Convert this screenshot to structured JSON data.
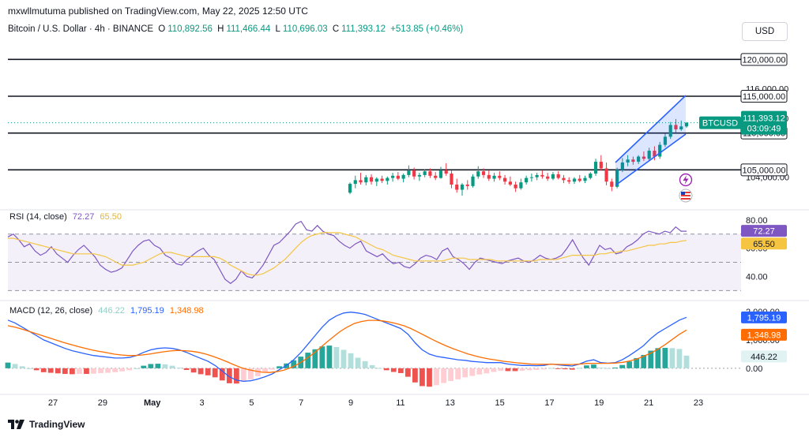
{
  "header": {
    "publisher": "mxwllmutuma published on TradingView.com, May 22, 2025 12:50 UTC",
    "symbol": "Bitcoin / U.S. Dollar · 4h · BINANCE",
    "open_label": "O",
    "open": "110,892.56",
    "high_label": "H",
    "high": "111,466.44",
    "low_label": "L",
    "low": "110,696.03",
    "close_label": "C",
    "close": "111,393.12",
    "change": "+513.85 (+0.46%)",
    "currency_button": "USD"
  },
  "footer": {
    "brand": "TradingView"
  },
  "colors": {
    "up": "#089981",
    "down": "#f23645",
    "rsi_line": "#7e57c2",
    "rsi_ma": "#f5c542",
    "macd_line": "#2962ff",
    "signal_line": "#ff6d00",
    "hist_up": "#26a69a",
    "hist_down": "#ef5350",
    "channel": "#2962ff"
  },
  "chart_data": [
    {
      "type": "candlestick",
      "pane": "price",
      "x_ticks": [
        "27",
        "29",
        "May",
        "3",
        "5",
        "7",
        "9",
        "11",
        "13",
        "15",
        "17",
        "19",
        "21",
        "23"
      ],
      "y_ticks": [
        "116,000.00",
        "112,000.00",
        "104,000.00"
      ],
      "y_range": [
        100000,
        122500
      ],
      "horizontal_levels": [
        {
          "value": 120000,
          "label": "120,000.00"
        },
        {
          "value": 115000,
          "label": "115,000.00"
        },
        {
          "value": 110000,
          "label": "110,000.00"
        },
        {
          "value": 105000,
          "label": "105,000.00"
        }
      ],
      "last_price": {
        "symbol": "BTCUSD",
        "price": "111,393.12",
        "countdown": "03:09:49",
        "value": 111393
      },
      "candles": [
        [
          101900,
          103300,
          101700,
          103100
        ],
        [
          103100,
          104200,
          102500,
          103600
        ],
        [
          103600,
          104600,
          103000,
          103300
        ],
        [
          103300,
          104300,
          102900,
          104000
        ],
        [
          104000,
          104400,
          103000,
          103400
        ],
        [
          103400,
          104000,
          102800,
          103800
        ],
        [
          103800,
          104200,
          103200,
          103500
        ],
        [
          103500,
          104100,
          103000,
          103900
        ],
        [
          103900,
          104600,
          103400,
          104200
        ],
        [
          104200,
          104700,
          103600,
          103800
        ],
        [
          103800,
          104500,
          103300,
          104300
        ],
        [
          104300,
          105600,
          104000,
          104900
        ],
        [
          104900,
          105300,
          103700,
          104100
        ],
        [
          104100,
          104600,
          103500,
          104300
        ],
        [
          104300,
          105100,
          104000,
          104800
        ],
        [
          104800,
          105200,
          103900,
          104200
        ],
        [
          104200,
          104700,
          103600,
          103900
        ],
        [
          103900,
          105400,
          103800,
          104900
        ],
        [
          104900,
          105900,
          104200,
          104500
        ],
        [
          104500,
          104900,
          102500,
          103000
        ],
        [
          103000,
          103800,
          101900,
          102300
        ],
        [
          102300,
          103200,
          101500,
          103000
        ],
        [
          103000,
          103600,
          102300,
          102800
        ],
        [
          102800,
          104400,
          102600,
          104100
        ],
        [
          104100,
          105500,
          103800,
          104800
        ],
        [
          104800,
          105200,
          103900,
          104300
        ],
        [
          104300,
          104900,
          103500,
          103800
        ],
        [
          103800,
          104600,
          103400,
          104200
        ],
        [
          104200,
          104800,
          103600,
          103900
        ],
        [
          103900,
          104300,
          103000,
          103400
        ],
        [
          103400,
          104100,
          102800,
          103000
        ],
        [
          103000,
          103400,
          102000,
          102500
        ],
        [
          102500,
          103800,
          102300,
          103300
        ],
        [
          103300,
          104200,
          103000,
          103900
        ],
        [
          103900,
          104500,
          103400,
          104000
        ],
        [
          104000,
          104600,
          103600,
          104300
        ],
        [
          104300,
          104900,
          103800,
          104100
        ],
        [
          104100,
          104600,
          103500,
          103800
        ],
        [
          103800,
          104700,
          103600,
          104400
        ],
        [
          104400,
          104800,
          103700,
          103900
        ],
        [
          103900,
          104300,
          103200,
          103600
        ],
        [
          103600,
          104000,
          103100,
          103400
        ],
        [
          103400,
          104000,
          103100,
          103800
        ],
        [
          103800,
          104300,
          103300,
          103500
        ],
        [
          103500,
          104200,
          103200,
          103900
        ],
        [
          103900,
          104700,
          103700,
          104500
        ],
        [
          104500,
          106500,
          104200,
          106100
        ],
        [
          106100,
          107000,
          104900,
          105200
        ],
        [
          105200,
          106000,
          102900,
          103400
        ],
        [
          103400,
          103800,
          102100,
          102700
        ],
        [
          102700,
          105300,
          102500,
          105000
        ],
        [
          105000,
          106600,
          104700,
          106000
        ],
        [
          106000,
          107000,
          105500,
          106400
        ],
        [
          106400,
          106800,
          105700,
          106100
        ],
        [
          106100,
          107000,
          105800,
          106800
        ],
        [
          106800,
          107500,
          106200,
          106500
        ],
        [
          106500,
          108000,
          106300,
          107600
        ],
        [
          107600,
          108200,
          106300,
          106800
        ],
        [
          106800,
          108800,
          106500,
          108400
        ],
        [
          108400,
          109900,
          108100,
          109500
        ],
        [
          109500,
          111500,
          109200,
          111100
        ],
        [
          111100,
          111900,
          110100,
          110500
        ],
        [
          110500,
          111700,
          110300,
          110900
        ],
        [
          110900,
          111500,
          110700,
          111393
        ]
      ]
    },
    {
      "type": "line",
      "pane": "rsi",
      "title": "RSI (14, close)",
      "legend_values": [
        "72.27",
        "65.50"
      ],
      "y_ticks": [
        "80.00",
        "60.00",
        "40.00"
      ],
      "bands": [
        70,
        50,
        30
      ],
      "y_range": [
        28,
        86
      ],
      "last_labels": [
        {
          "value": 72.27,
          "label": "72.27"
        },
        {
          "value": 65.5,
          "label": "65.50"
        }
      ],
      "series": [
        {
          "values": [
            68,
            70,
            66,
            61,
            63,
            58,
            55,
            57,
            61,
            56,
            53,
            50,
            55,
            59,
            62,
            58,
            54,
            48,
            45,
            43,
            44,
            46,
            52,
            58,
            62,
            65,
            66,
            62,
            60,
            55,
            53,
            49,
            48,
            52,
            55,
            58,
            60,
            55,
            52,
            45,
            38,
            35,
            38,
            44,
            40,
            39,
            43,
            48,
            55,
            62,
            64,
            68,
            72,
            77,
            79,
            73,
            72,
            76,
            72,
            70,
            69,
            65,
            62,
            60,
            63,
            65,
            58,
            56,
            54,
            56,
            52,
            49,
            50,
            47,
            46,
            49,
            53,
            55,
            54,
            52,
            58,
            60,
            54,
            52,
            49,
            45,
            50,
            53,
            52,
            51,
            50,
            49,
            51,
            52,
            53,
            51,
            50,
            52,
            55,
            53,
            52,
            53,
            55,
            60,
            66,
            59,
            53,
            48,
            55,
            62,
            59,
            60,
            56,
            57,
            61,
            63,
            66,
            70,
            72,
            71,
            70,
            72,
            71,
            75,
            72,
            72
          ]
        },
        {
          "values": [
            67,
            67,
            66,
            65,
            64,
            63,
            62,
            61,
            60,
            59,
            58,
            57,
            56,
            56,
            56,
            56,
            56,
            55,
            54,
            52,
            50,
            48,
            48,
            48,
            49,
            50,
            52,
            54,
            56,
            57,
            57,
            56,
            55,
            54,
            54,
            54,
            54,
            54,
            54,
            53,
            51,
            48,
            46,
            44,
            42,
            41,
            41,
            42,
            44,
            46,
            49,
            52,
            56,
            60,
            64,
            67,
            69,
            70,
            71,
            71,
            71,
            71,
            70,
            69,
            68,
            66,
            64,
            62,
            60,
            59,
            57,
            55,
            54,
            53,
            52,
            51,
            51,
            51,
            51,
            51,
            51,
            52,
            53,
            53,
            53,
            52,
            52,
            52,
            52,
            52,
            51,
            51,
            51,
            51,
            51,
            51,
            51,
            51,
            52,
            52,
            52,
            52,
            53,
            54,
            55,
            55,
            55,
            55,
            55,
            56,
            56,
            57,
            57,
            58,
            58,
            59,
            60,
            61,
            62,
            62,
            63,
            63,
            64,
            64,
            65,
            65.5
          ]
        }
      ]
    },
    {
      "type": "line",
      "pane": "macd",
      "title": "MACD (12, 26, close)",
      "legend_values": [
        "446.22",
        "1,795.19",
        "1,348.98"
      ],
      "y_ticks": [
        "2,000.00",
        "1,000.00",
        "0.00"
      ],
      "y_range": [
        -700,
        2250
      ],
      "last_labels": [
        {
          "value": 1795.19,
          "label": "1,795.19"
        },
        {
          "value": 1348.98,
          "label": "1,348.98"
        },
        {
          "value": 446.22,
          "label": "446.22"
        }
      ],
      "series": [
        {
          "values": [
            1700,
            1600,
            1450,
            1300,
            1150,
            1000,
            900,
            800,
            700,
            620,
            560,
            500,
            450,
            420,
            390,
            360,
            360,
            380,
            450,
            560,
            650,
            700,
            720,
            700,
            650,
            560,
            450,
            350,
            250,
            100,
            -100,
            -300,
            -420,
            -460,
            -440,
            -380,
            -300,
            -200,
            -50,
            100,
            300,
            550,
            850,
            1150,
            1450,
            1700,
            1850,
            1950,
            1980,
            1950,
            1900,
            1800,
            1700,
            1600,
            1500,
            1400,
            1200,
            900,
            650,
            500,
            420,
            380,
            340,
            300,
            280,
            240,
            220,
            200,
            200,
            200,
            150,
            120,
            100,
            100,
            90,
            100,
            150,
            120,
            100,
            80,
            150,
            250,
            300,
            200,
            180,
            200,
            300,
            450,
            620,
            800,
            1050,
            1250,
            1400,
            1550,
            1700,
            1795
          ]
        },
        {
          "values": [
            1500,
            1450,
            1380,
            1300,
            1220,
            1140,
            1060,
            980,
            900,
            830,
            760,
            700,
            640,
            590,
            550,
            500,
            470,
            450,
            450,
            470,
            500,
            540,
            580,
            610,
            630,
            620,
            600,
            560,
            500,
            420,
            330,
            230,
            120,
            20,
            -50,
            -100,
            -140,
            -150,
            -120,
            -70,
            20,
            140,
            300,
            480,
            680,
            900,
            1100,
            1300,
            1450,
            1580,
            1650,
            1690,
            1690,
            1670,
            1630,
            1570,
            1500,
            1400,
            1280,
            1150,
            1020,
            900,
            790,
            690,
            600,
            510,
            440,
            380,
            330,
            290,
            250,
            220,
            190,
            170,
            150,
            140,
            140,
            140,
            135,
            130,
            135,
            150,
            170,
            175,
            175,
            175,
            185,
            210,
            260,
            330,
            430,
            540,
            680,
            840,
            1020,
            1200,
            1349
          ]
        },
        {
          "values": [
            200,
            150,
            70,
            0,
            -70,
            -140,
            -160,
            -180,
            -200,
            -210,
            -200,
            -200,
            -190,
            -170,
            -160,
            -140,
            -110,
            -70,
            0,
            90,
            150,
            160,
            140,
            90,
            20,
            -60,
            -150,
            -210,
            -250,
            -320,
            -430,
            -530,
            -540,
            -480,
            -390,
            -280,
            -160,
            -50,
            70,
            170,
            280,
            410,
            550,
            670,
            770,
            800,
            750,
            650,
            530,
            370,
            250,
            110,
            10,
            -70,
            -130,
            -170,
            -300,
            -500,
            -630,
            -650,
            -600,
            -520,
            -450,
            -390,
            -320,
            -270,
            -220,
            -180,
            -130,
            -90,
            -100,
            -100,
            -90,
            -70,
            -60,
            -40,
            10,
            -10,
            -35,
            -50,
            15,
            100,
            130,
            25,
            5,
            25,
            115,
            240,
            360,
            470,
            620,
            710,
            720,
            710,
            680,
            446
          ]
        }
      ]
    }
  ]
}
